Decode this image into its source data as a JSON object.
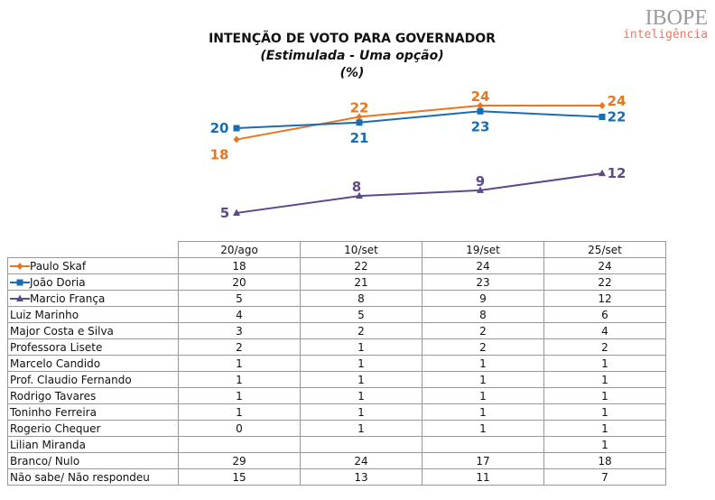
{
  "logo": {
    "brand": "IBOPE",
    "tagline": "inteligência"
  },
  "chart_data": {
    "type": "line",
    "title": "INTENÇÃO DE VOTO PARA GOVERNADOR",
    "subtitle": "(Estimulada - Uma opção)",
    "unit": "(%)",
    "categories": [
      "20/ago",
      "10/set",
      "19/set",
      "25/set"
    ],
    "series": [
      {
        "name": "Paulo Skaf",
        "values": [
          18,
          22,
          24,
          24
        ],
        "color": "#E8761E",
        "marker": "diamond"
      },
      {
        "name": "João Doria",
        "values": [
          20,
          21,
          23,
          22
        ],
        "color": "#1B6CB0",
        "marker": "square"
      },
      {
        "name": "Marcio França",
        "values": [
          5,
          8,
          9,
          12
        ],
        "color": "#5D4A86",
        "marker": "triangle"
      }
    ],
    "legend": "table-left"
  },
  "table": {
    "headers": [
      "20/ago",
      "10/set",
      "19/set",
      "25/set"
    ],
    "rows": [
      {
        "name": "Paulo Skaf",
        "values": [
          "18",
          "22",
          "24",
          "24"
        ],
        "legend": 0
      },
      {
        "name": "João Doria",
        "values": [
          "20",
          "21",
          "23",
          "22"
        ],
        "legend": 1
      },
      {
        "name": "Marcio França",
        "values": [
          "5",
          "8",
          "9",
          "12"
        ],
        "legend": 2
      },
      {
        "name": "Luiz Marinho",
        "values": [
          "4",
          "5",
          "8",
          "6"
        ]
      },
      {
        "name": "Major Costa e Silva",
        "values": [
          "3",
          "2",
          "2",
          "4"
        ]
      },
      {
        "name": "Professora Lisete",
        "values": [
          "2",
          "1",
          "2",
          "2"
        ]
      },
      {
        "name": "Marcelo Candido",
        "values": [
          "1",
          "1",
          "1",
          "1"
        ]
      },
      {
        "name": "Prof. Claudio Fernando",
        "values": [
          "1",
          "1",
          "1",
          "1"
        ]
      },
      {
        "name": "Rodrigo Tavares",
        "values": [
          "1",
          "1",
          "1",
          "1"
        ]
      },
      {
        "name": "Toninho Ferreira",
        "values": [
          "1",
          "1",
          "1",
          "1"
        ]
      },
      {
        "name": "Rogerio Chequer",
        "values": [
          "0",
          "1",
          "1",
          "1"
        ]
      },
      {
        "name": "Lilian Miranda",
        "values": [
          "",
          "",
          "",
          "1"
        ]
      },
      {
        "name": "Branco/ Nulo",
        "values": [
          "29",
          "24",
          "17",
          "18"
        ]
      },
      {
        "name": "Não sabe/ Não respondeu",
        "values": [
          "15",
          "13",
          "11",
          "7"
        ]
      }
    ]
  }
}
